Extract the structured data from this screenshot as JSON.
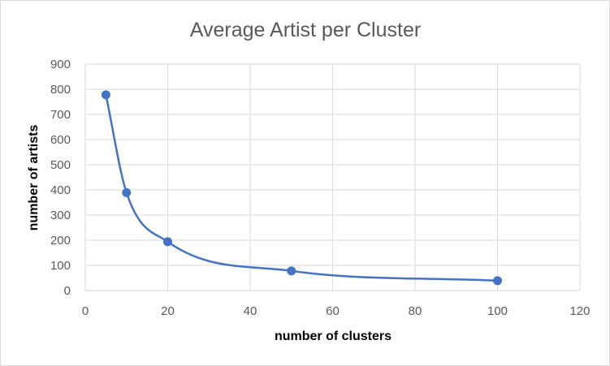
{
  "chart_data": {
    "type": "scatter",
    "title": "Average Artist per Cluster",
    "xlabel": "number of clusters",
    "ylabel": "number of artists",
    "xlim": [
      0,
      120
    ],
    "ylim": [
      0,
      900
    ],
    "x_ticks": [
      0,
      20,
      40,
      60,
      80,
      100,
      120
    ],
    "y_ticks": [
      0,
      100,
      200,
      300,
      400,
      500,
      600,
      700,
      800,
      900
    ],
    "grid": true,
    "smooth_line": true,
    "series": [
      {
        "x": [
          5,
          10,
          20,
          50,
          100
        ],
        "y": [
          778,
          389,
          194,
          78,
          39
        ]
      }
    ],
    "colors": {
      "series": "#4472c4",
      "grid": "#d9d9d9",
      "text": "#595959"
    }
  }
}
